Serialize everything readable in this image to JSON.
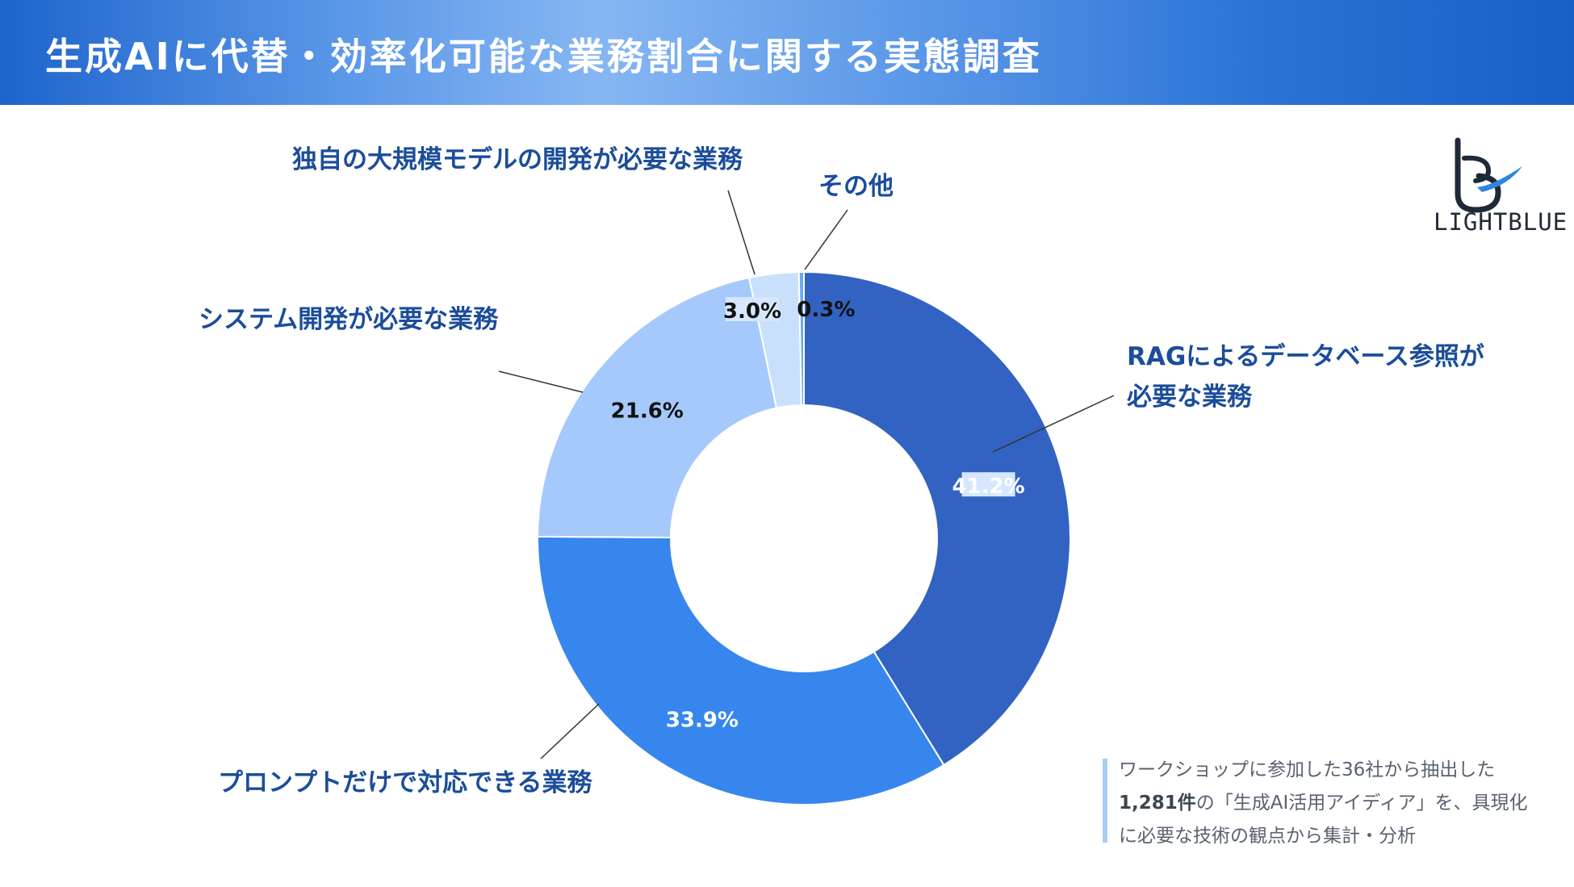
{
  "header": {
    "title": "生成AIに代替・効率化可能な業務割合に関する実態調査"
  },
  "logo": {
    "wordmark": "LIGHTBLUE"
  },
  "chart_data": {
    "type": "pie",
    "donut": true,
    "start_angle_deg": 0,
    "direction": "clockwise",
    "slices": [
      {
        "label": [
          "RAGによるデータベース参照が",
          "必要な業務"
        ],
        "value": 41.2,
        "value_label": "41.2%",
        "color": "#3363c2",
        "label_color": "#ffffff"
      },
      {
        "label": [
          "プロンプトだけで対応できる業務"
        ],
        "value": 33.9,
        "value_label": "33.9%",
        "color": "#3686ee",
        "label_color": "#ffffff"
      },
      {
        "label": [
          "システム開発が必要な業務"
        ],
        "value": 21.6,
        "value_label": "21.6%",
        "color": "#a5c9fb",
        "label_color": "#111111"
      },
      {
        "label": [
          "独自の大規模モデルの開発が必要な業務"
        ],
        "value": 3.0,
        "value_label": "3.0%",
        "color": "#c9e0fd",
        "label_color": "#111111"
      },
      {
        "label": [
          "その他"
        ],
        "value": 0.3,
        "value_label": "0.3%",
        "color": "#6aa8ee",
        "label_color": "#111111"
      }
    ]
  },
  "note": {
    "line1": "ワークショップに参加した36社から抽出した",
    "line2_strong": "1,281件",
    "line2_rest": "の「生成AI活用アイディア」を、具現化",
    "line3": "に必要な技術の観点から集計・分析"
  }
}
